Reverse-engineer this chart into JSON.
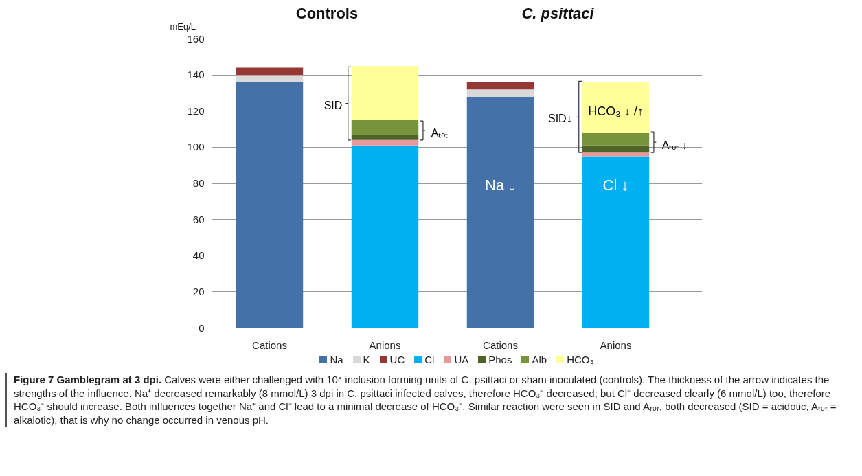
{
  "chart_data": {
    "type": "bar",
    "stacked": true,
    "ylabel": "mEq/L",
    "categories": [
      "Cations",
      "Anions",
      "Cations",
      "Anions"
    ],
    "series": [
      {
        "name": "Na",
        "color": "#4472a8",
        "values": [
          136,
          null,
          128,
          null
        ]
      },
      {
        "name": "K",
        "color": "#d9d9d9",
        "values": [
          4,
          null,
          4,
          null
        ]
      },
      {
        "name": "UC",
        "color": "#953735",
        "values": [
          4,
          null,
          4,
          null
        ]
      },
      {
        "name": "Cl",
        "color": "#00b0f0",
        "values": [
          null,
          101,
          null,
          95
        ]
      },
      {
        "name": "UA",
        "color": "#e6999a",
        "values": [
          null,
          3,
          null,
          2
        ]
      },
      {
        "name": "Phos",
        "color": "#4f6228",
        "values": [
          null,
          3,
          null,
          4
        ]
      },
      {
        "name": "Alb",
        "color": "#77933c",
        "values": [
          null,
          8,
          null,
          7
        ]
      },
      {
        "name": "HCO₃",
        "color": "#ffff99",
        "values": [
          null,
          30,
          null,
          28
        ]
      }
    ],
    "ylim": [
      0,
      160
    ],
    "yticks": [
      0,
      20,
      40,
      60,
      80,
      100,
      120,
      140,
      160
    ],
    "grid": "y",
    "legend": "bottom",
    "annotations": [
      "Controls",
      "C. psittaci",
      "SID",
      "Aₜₒₜ",
      "SID↓",
      "Aₜₒₜ ↓",
      "HCO₃ ↓ /↑",
      "Na ↓",
      "Cl ↓",
      "Figure 7 Gamblegram at 3 dpi. Calves were either challenged with 10⁸ inclusion forming units of C. psittaci or sham inoculated (controls). The thickness of the arrow indicates the strengths of the influence. Na⁺ decreased remarkably (8 mmol/L) 3 dpi in C. psittaci infected calves, therefore HCO₃⁻ decreased; but Cl⁻ decreased clearly (6 mmol/L) too, therefore HCO₃⁻ should increase. Both influences together Na⁺ and Cl⁻ lead to a minimal decrease of HCO₃⁻. Similar reaction were seen in SID and Aₜₒₜ, both decreased (SID = acidotic, Aₜₒₜ = alkalotic), that is why no change occurred in venous pH."
    ]
  }
}
